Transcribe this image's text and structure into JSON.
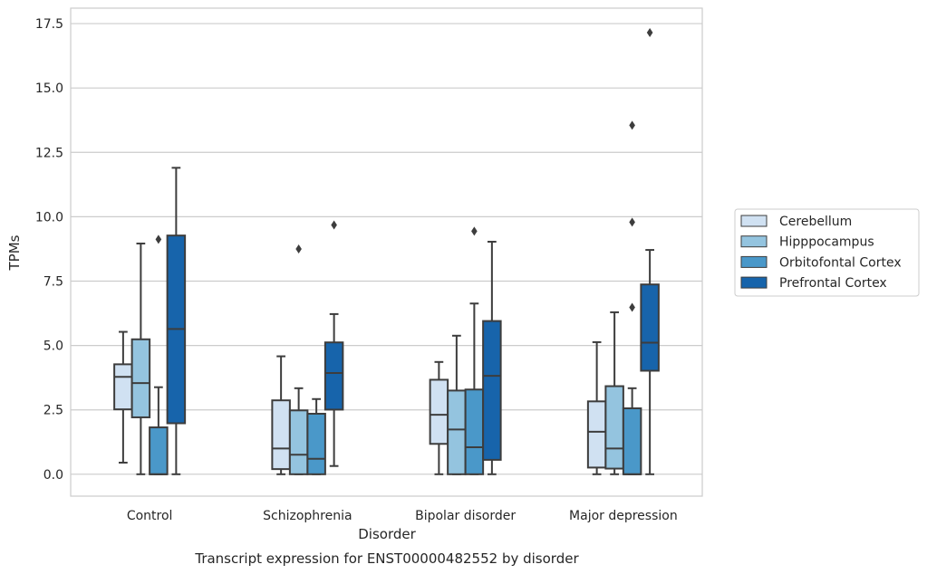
{
  "chart_data": {
    "type": "boxplot",
    "title": "",
    "caption": "Transcript expression for ENST00000482552 by disorder",
    "xlabel": "Disorder",
    "ylabel": "TPMs",
    "ylim": [
      -0.85,
      18.1
    ],
    "yticks": [
      0.0,
      2.5,
      5.0,
      7.5,
      10.0,
      12.5,
      15.0,
      17.5
    ],
    "ytick_labels": [
      "0.0",
      "2.5",
      "5.0",
      "7.5",
      "10.0",
      "12.5",
      "15.0",
      "17.5"
    ],
    "grid": "horizontal",
    "legend_position": "right",
    "categories": [
      "Control",
      "Schizophrenia",
      "Bipolar disorder",
      "Major depression"
    ],
    "series": [
      {
        "name": "Cerebellum",
        "color": "#d0e1f2",
        "boxes": [
          {
            "whislo": 0.45,
            "q1": 2.52,
            "med": 3.78,
            "q3": 4.27,
            "whishi": 5.53,
            "fliers": []
          },
          {
            "whislo": 0.0,
            "q1": 0.2,
            "med": 1.0,
            "q3": 2.87,
            "whishi": 4.58,
            "fliers": []
          },
          {
            "whislo": 0.0,
            "q1": 1.18,
            "med": 2.31,
            "q3": 3.67,
            "whishi": 4.36,
            "fliers": []
          },
          {
            "whislo": 0.0,
            "q1": 0.26,
            "med": 1.65,
            "q3": 2.83,
            "whishi": 5.13,
            "fliers": []
          }
        ]
      },
      {
        "name": "Hipppocampus",
        "color": "#94c4df",
        "boxes": [
          {
            "whislo": 0.0,
            "q1": 2.21,
            "med": 3.54,
            "q3": 5.24,
            "whishi": 8.96,
            "fliers": []
          },
          {
            "whislo": 0.0,
            "q1": 0.0,
            "med": 0.76,
            "q3": 2.48,
            "whishi": 3.34,
            "fliers": [
              8.75
            ]
          },
          {
            "whislo": 0.0,
            "q1": 0.0,
            "med": 1.74,
            "q3": 3.25,
            "whishi": 5.38,
            "fliers": []
          },
          {
            "whislo": 0.0,
            "q1": 0.22,
            "med": 1.0,
            "q3": 3.42,
            "whishi": 6.29,
            "fliers": []
          }
        ]
      },
      {
        "name": "Orbitofontal Cortex",
        "color": "#4a98c9",
        "boxes": [
          {
            "whislo": 0.0,
            "q1": 0.0,
            "med": 0.0,
            "q3": 1.82,
            "whishi": 3.38,
            "fliers": [
              9.12
            ]
          },
          {
            "whislo": 0.0,
            "q1": 0.0,
            "med": 0.6,
            "q3": 2.35,
            "whishi": 2.92,
            "fliers": []
          },
          {
            "whislo": 0.0,
            "q1": 0.0,
            "med": 1.05,
            "q3": 3.29,
            "whishi": 6.63,
            "fliers": [
              9.44
            ]
          },
          {
            "whislo": 0.0,
            "q1": 0.0,
            "med": 0.0,
            "q3": 2.56,
            "whishi": 3.34,
            "fliers": [
              6.48,
              9.79,
              13.55
            ]
          }
        ]
      },
      {
        "name": "Prefrontal Cortex",
        "color": "#1764ab",
        "boxes": [
          {
            "whislo": 0.0,
            "q1": 1.98,
            "med": 5.64,
            "q3": 9.27,
            "whishi": 11.9,
            "fliers": []
          },
          {
            "whislo": 0.32,
            "q1": 2.51,
            "med": 3.93,
            "q3": 5.12,
            "whishi": 6.22,
            "fliers": [
              9.68
            ]
          },
          {
            "whislo": 0.0,
            "q1": 0.56,
            "med": 3.82,
            "q3": 5.95,
            "whishi": 9.03,
            "fliers": []
          },
          {
            "whislo": 0.0,
            "q1": 4.02,
            "med": 5.11,
            "q3": 7.37,
            "whishi": 8.71,
            "fliers": [
              17.15
            ]
          }
        ]
      }
    ]
  }
}
